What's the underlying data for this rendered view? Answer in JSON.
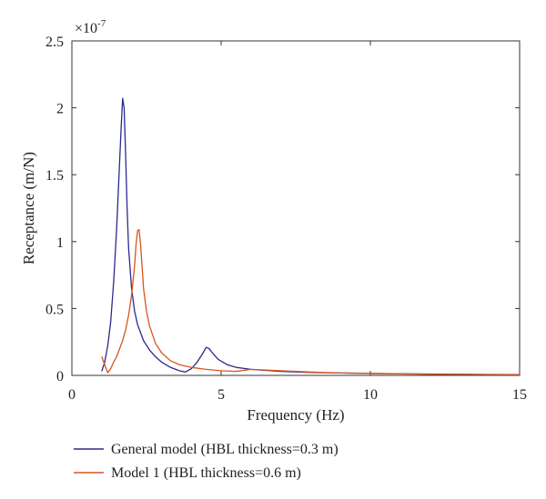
{
  "chart_data": {
    "type": "line",
    "title": "",
    "xlabel": "Frequency (Hz)",
    "ylabel": "Receptance (m/N)",
    "xlim": [
      0,
      15
    ],
    "ylim": [
      0,
      2.5
    ],
    "x_ticks": [
      0,
      5,
      10,
      15
    ],
    "y_ticks": [
      0,
      0.5,
      1,
      1.5,
      2,
      2.5
    ],
    "x_tick_labels": [
      "0",
      "5",
      "10",
      "15"
    ],
    "y_tick_labels": [
      "0",
      "0.5",
      "1",
      "1.5",
      "2",
      "2.5"
    ],
    "y_multiplier_base": "×10",
    "y_multiplier_exp": "-7",
    "grid": false,
    "legend_position": "bottom-left-outside",
    "series": [
      {
        "name": "General model (HBL thickness=0.3 m)",
        "color": "#2b2a8f",
        "x": [
          1.0,
          1.1,
          1.2,
          1.3,
          1.4,
          1.5,
          1.6,
          1.65,
          1.7,
          1.75,
          1.8,
          1.85,
          1.9,
          2.0,
          2.1,
          2.2,
          2.4,
          2.6,
          2.8,
          3.0,
          3.3,
          3.6,
          3.8,
          4.0,
          4.2,
          4.4,
          4.5,
          4.6,
          4.7,
          4.9,
          5.2,
          5.5,
          6.0,
          7.0,
          8.0,
          9.0,
          10.0,
          11.0,
          12.0,
          13.0,
          14.0,
          15.0
        ],
        "y": [
          0.03,
          0.1,
          0.22,
          0.4,
          0.7,
          1.1,
          1.6,
          1.85,
          2.07,
          2.0,
          1.65,
          1.25,
          0.95,
          0.65,
          0.48,
          0.38,
          0.26,
          0.19,
          0.14,
          0.1,
          0.06,
          0.035,
          0.025,
          0.05,
          0.1,
          0.17,
          0.21,
          0.2,
          0.17,
          0.12,
          0.08,
          0.06,
          0.045,
          0.03,
          0.022,
          0.018,
          0.015,
          0.012,
          0.01,
          0.008,
          0.007,
          0.006
        ]
      },
      {
        "name": "Model 1 (HBL thickness=0.6 m)",
        "color": "#d9541e",
        "x": [
          1.0,
          1.1,
          1.2,
          1.3,
          1.4,
          1.5,
          1.6,
          1.7,
          1.8,
          1.9,
          2.0,
          2.1,
          2.15,
          2.2,
          2.25,
          2.3,
          2.35,
          2.4,
          2.5,
          2.6,
          2.8,
          3.0,
          3.3,
          3.6,
          4.0,
          4.5,
          5.0,
          5.5,
          6.0,
          7.0,
          8.0,
          9.0,
          10.0,
          11.0,
          12.0,
          13.0,
          14.0,
          15.0
        ],
        "y": [
          0.14,
          0.08,
          0.02,
          0.05,
          0.1,
          0.14,
          0.2,
          0.26,
          0.34,
          0.45,
          0.6,
          0.82,
          0.98,
          1.08,
          1.09,
          0.98,
          0.82,
          0.65,
          0.48,
          0.37,
          0.24,
          0.17,
          0.11,
          0.08,
          0.06,
          0.045,
          0.035,
          0.03,
          0.045,
          0.035,
          0.025,
          0.018,
          0.014,
          0.011,
          0.008,
          0.007,
          0.006,
          0.005
        ]
      }
    ]
  }
}
